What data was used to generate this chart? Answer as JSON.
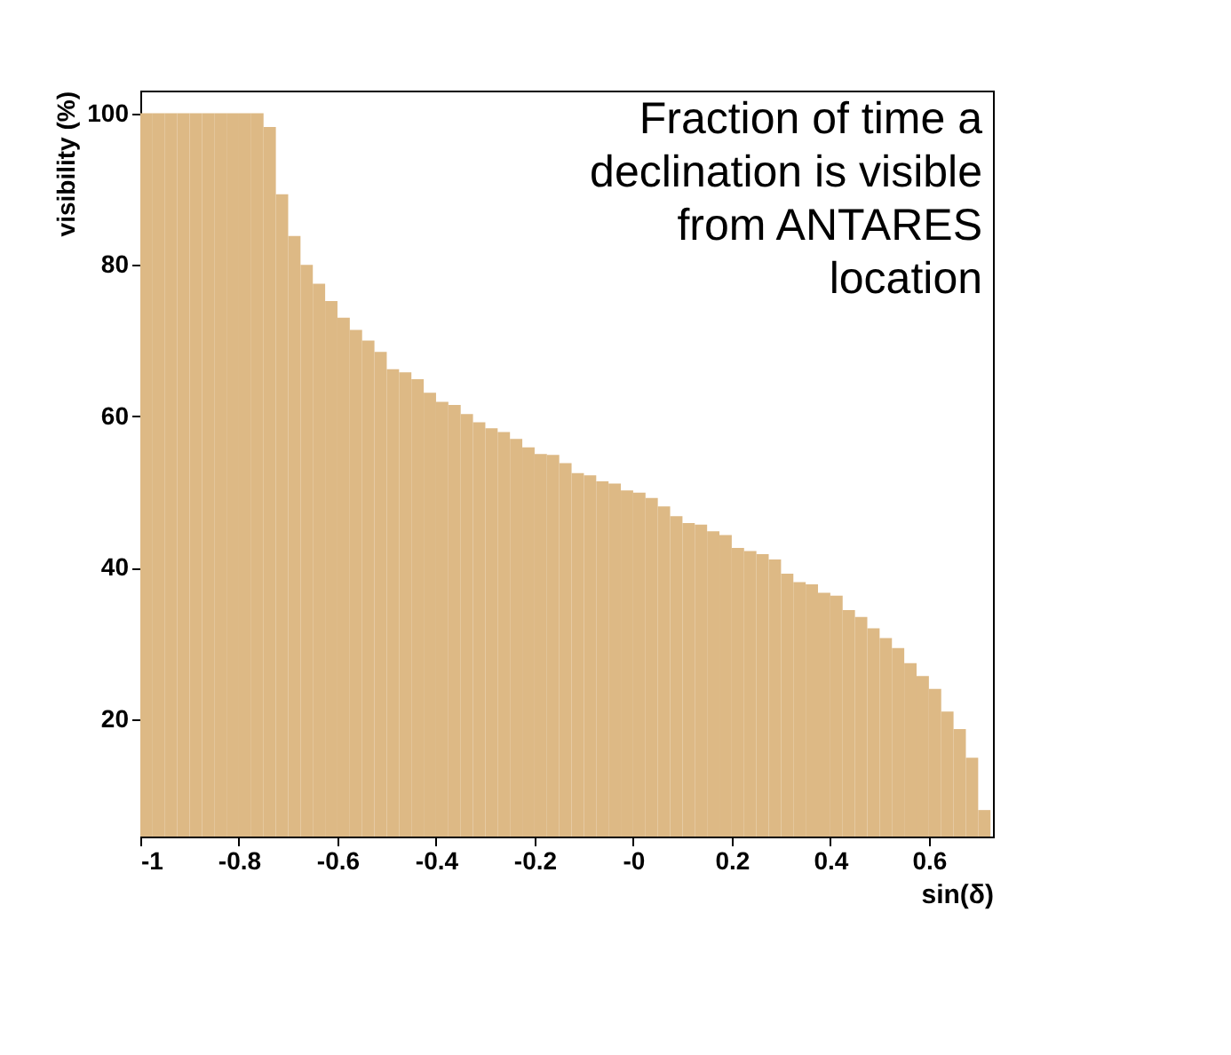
{
  "chart_data": {
    "type": "histogram",
    "xlabel": "sin(δ)",
    "ylabel": "visibility (%)",
    "annotations": [
      "Fraction of time a\ndeclination is visible\nfrom ANTARES\nlocation"
    ],
    "bins": [
      -1,
      -0.975,
      -0.95,
      -0.925,
      -0.9,
      -0.875,
      -0.85,
      -0.825,
      -0.8,
      -0.775,
      -0.75,
      -0.725,
      -0.7,
      -0.675,
      -0.65,
      -0.625,
      -0.6,
      -0.575,
      -0.55,
      -0.525,
      -0.5,
      -0.475,
      -0.45,
      -0.425,
      -0.4,
      -0.375,
      -0.35,
      -0.325,
      -0.3,
      -0.275,
      -0.25,
      -0.225,
      -0.2,
      -0.175,
      -0.15,
      -0.125,
      -0.1,
      -0.075,
      -0.05,
      -0.025,
      0,
      0.025,
      0.05,
      0.075,
      0.1,
      0.125,
      0.15,
      0.175,
      0.2,
      0.225,
      0.25,
      0.275,
      0.3,
      0.325,
      0.35,
      0.375,
      0.4,
      0.425,
      0.45,
      0.475,
      0.5,
      0.525,
      0.55,
      0.575,
      0.6,
      0.625,
      0.65,
      0.675,
      0.7,
      0.725
    ],
    "values": [
      100,
      100,
      100,
      100,
      100,
      100,
      100,
      100,
      100,
      100,
      98.2,
      89.3,
      83.8,
      80.0,
      77.5,
      75.2,
      73.0,
      71.4,
      70.0,
      68.5,
      66.2,
      65.8,
      64.9,
      63.1,
      61.9,
      61.5,
      60.3,
      59.2,
      58.4,
      57.9,
      57.0,
      55.9,
      55.0,
      54.9,
      53.8,
      52.5,
      52.2,
      51.4,
      51.1,
      50.2,
      49.9,
      49.2,
      48.1,
      46.8,
      45.9,
      45.7,
      44.8,
      44.3,
      42.6,
      42.2,
      41.8,
      41.1,
      39.2,
      38.1,
      37.8,
      36.7,
      36.3,
      34.4,
      33.5,
      32.0,
      30.7,
      29.4,
      27.4,
      25.7,
      24.0,
      21.0,
      18.7,
      14.9,
      8.0
    ],
    "color": "#ddb985",
    "xlim": [
      -1,
      0.73
    ],
    "xticks": [
      -1,
      -0.8,
      -0.6,
      -0.4,
      -0.2,
      {
        "value": 0,
        "label": "-0"
      },
      0.2,
      0.4,
      0.6
    ],
    "ylim": [
      4.5,
      103
    ],
    "yticks": [
      20,
      40,
      60,
      80,
      100
    ]
  }
}
